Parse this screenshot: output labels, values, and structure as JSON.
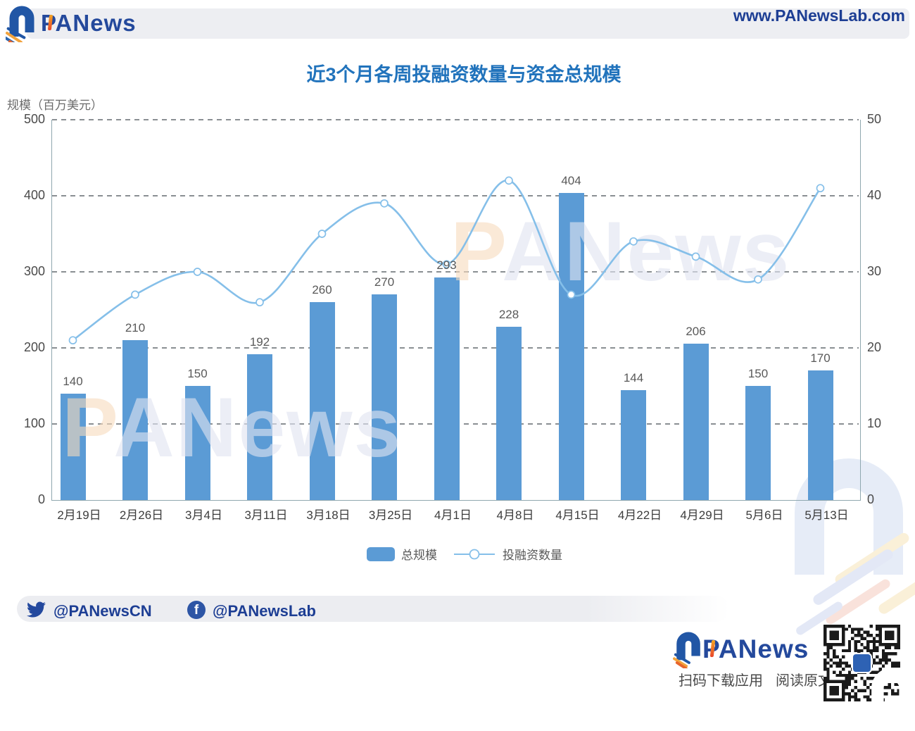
{
  "header": {
    "brand": "PANews",
    "url": "www.PANewsLab.com"
  },
  "chart_data": {
    "type": "bar",
    "title": "近3个月各周投融资数量与资金总规模",
    "categories": [
      "2月19日",
      "2月26日",
      "3月4日",
      "3月11日",
      "3月18日",
      "3月25日",
      "4月1日",
      "4月8日",
      "4月15日",
      "4月22日",
      "4月29日",
      "5月6日",
      "5月13日"
    ],
    "series": [
      {
        "name": "总规模",
        "type": "bar",
        "axis": "left",
        "color": "#5B9BD5",
        "values": [
          140,
          210,
          150,
          192,
          260,
          270,
          293,
          228,
          404,
          144,
          206,
          150,
          170
        ]
      },
      {
        "name": "投融资数量",
        "type": "line",
        "axis": "right",
        "color": "#85BFE9",
        "values": [
          21,
          27,
          30,
          26,
          35,
          39,
          31,
          42,
          27,
          34,
          32,
          29,
          41
        ]
      }
    ],
    "left_axis": {
      "label": "规模（百万美元）",
      "min": 0,
      "max": 500,
      "ticks": [
        500,
        400,
        300,
        200,
        100,
        0
      ]
    },
    "right_axis": {
      "min": 0,
      "max": 50,
      "ticks": [
        50,
        40,
        30,
        20,
        10,
        0
      ]
    },
    "grid": true,
    "legend_position": "bottom"
  },
  "watermark": {
    "text": "PANews"
  },
  "footer": {
    "twitter_handle": "@PANewsCN",
    "facebook_handle": "@PANewsLab",
    "brand": "PANews",
    "tagline_scan": "扫码下载应用",
    "tagline_read": "阅读原文"
  },
  "colors": {
    "bar": "#5B9BD5",
    "line": "#85BFE9",
    "title_blue": "#2173BC",
    "brand_blue": "#24499C",
    "axis": "#8FA7AF"
  }
}
